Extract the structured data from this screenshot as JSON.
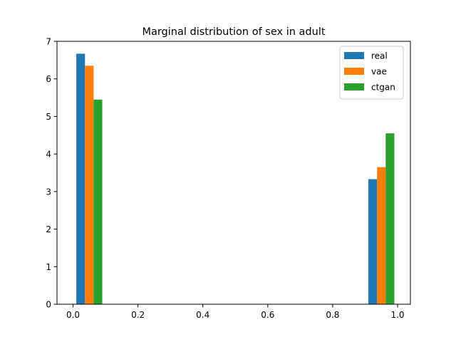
{
  "chart_data": {
    "type": "bar",
    "title": "Marginal distribution of sex in adult",
    "xlabel": "",
    "ylabel": "",
    "xlim": [
      -0.0495,
      1.0395
    ],
    "ylim": [
      0,
      7
    ],
    "x_ticks": [
      "0.0",
      "0.2",
      "0.4",
      "0.6",
      "0.8",
      "1.0"
    ],
    "y_ticks": [
      "0",
      "1",
      "2",
      "3",
      "4",
      "5",
      "6",
      "7"
    ],
    "bin_edges": [
      0.0,
      0.1,
      0.9,
      1.0
    ],
    "grid": false,
    "legend_position": "top-right",
    "series": [
      {
        "name": "real",
        "color": "#1f77b4",
        "values": [
          6.67,
          0,
          3.33
        ]
      },
      {
        "name": "vae",
        "color": "#ff7f0e",
        "values": [
          6.35,
          0,
          3.65
        ]
      },
      {
        "name": "ctgan",
        "color": "#2ca02c",
        "values": [
          5.45,
          0,
          4.55
        ]
      }
    ]
  }
}
